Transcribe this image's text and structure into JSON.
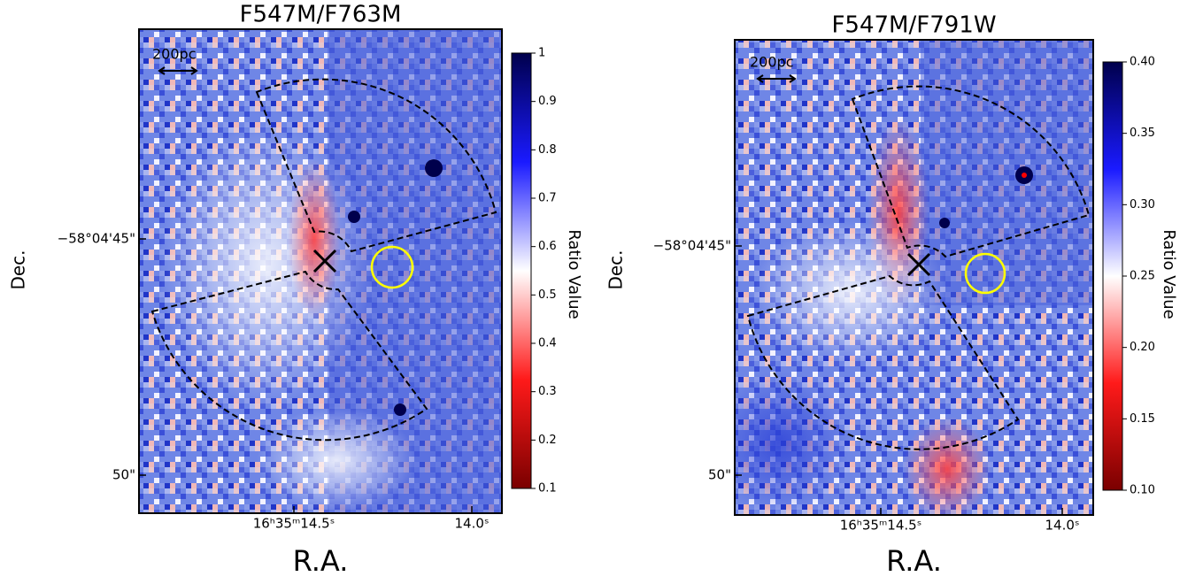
{
  "chart_data": [
    {
      "type": "image",
      "title": "F547M/F763M",
      "xlabel": "R.A.",
      "ylabel": "Dec.",
      "xtick_labels": [
        "16ʰ35ᵐ14.5ˢ",
        "14.0ˢ"
      ],
      "ytick_labels": [
        "−58°04'45\"",
        "50\""
      ],
      "scale_bar": "200pc",
      "colorbar_label": "Ratio Value",
      "colormap": "seismic_r",
      "clim": [
        0.1,
        1.0
      ],
      "cticks": [
        0.1,
        0.2,
        0.3,
        0.4,
        0.5,
        0.6,
        0.7,
        0.8,
        0.9,
        1.0
      ]
    },
    {
      "type": "image",
      "title": "F547M/F791W",
      "xlabel": "R.A.",
      "ylabel": "Dec.",
      "xtick_labels": [
        "16ʰ35ᵐ14.5ˢ",
        "14.0ˢ"
      ],
      "ytick_labels": [
        "−58°04'45\"",
        "50\""
      ],
      "scale_bar": "200pc",
      "colorbar_label": "Ratio Value",
      "colormap": "seismic_r",
      "clim": [
        0.1,
        0.4
      ],
      "cticks": [
        {
          "value": 0.1,
          "label": "0.10"
        },
        {
          "value": 0.15,
          "label": "0.15"
        },
        {
          "value": 0.2,
          "label": "0.20"
        },
        {
          "value": 0.25,
          "label": "0.25"
        },
        {
          "value": 0.3,
          "label": "0.30"
        },
        {
          "value": 0.35,
          "label": "0.35"
        },
        {
          "value": 0.4,
          "label": "0.40"
        }
      ]
    }
  ]
}
